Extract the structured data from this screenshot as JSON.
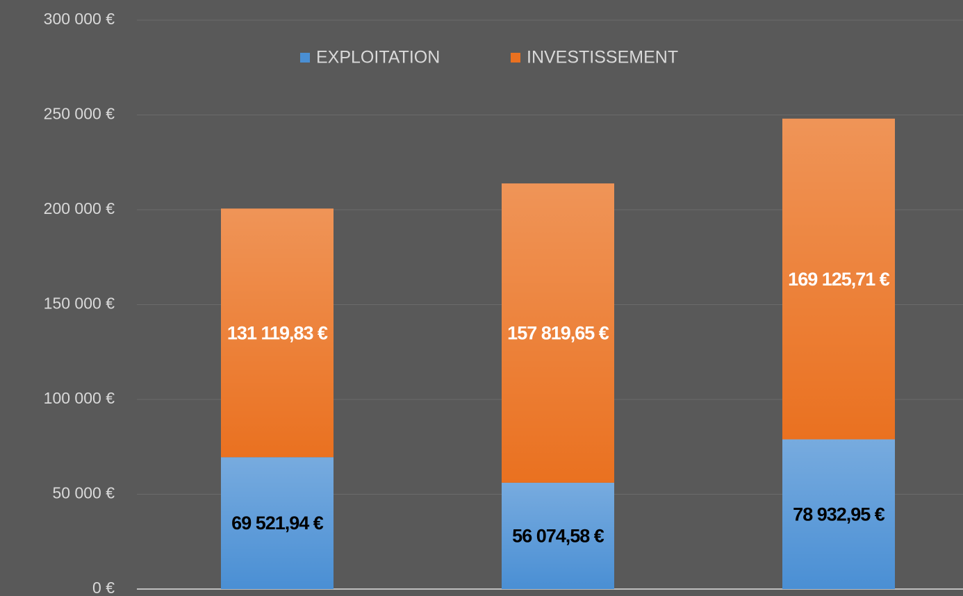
{
  "chart_data": {
    "type": "bar",
    "stacked": true,
    "categories": [
      null,
      null,
      null
    ],
    "series": [
      {
        "name": "EXPLOITATION",
        "color": "#4a8fd4",
        "label_color": "#000000",
        "values": [
          69521.94,
          56074.58,
          78932.95
        ],
        "value_labels": [
          "69 521,94 €",
          "56 074,58 €",
          "78 932,95 €"
        ]
      },
      {
        "name": "INVESTISSEMENT",
        "color": "#ea7120",
        "label_color": "#ffffff",
        "values": [
          131119.83,
          157819.65,
          169125.71
        ],
        "value_labels": [
          "131 119,83 €",
          "157 819,65 €",
          "169 125,71 €"
        ]
      }
    ],
    "ylim": [
      0,
      300000
    ],
    "yticks": [
      {
        "value": 0,
        "label": "0 €"
      },
      {
        "value": 50000,
        "label": "50 000 €"
      },
      {
        "value": 100000,
        "label": "100 000 €"
      },
      {
        "value": 150000,
        "label": "150 000 €"
      },
      {
        "value": 200000,
        "label": "200 000 €"
      },
      {
        "value": 250000,
        "label": "250 000 €"
      },
      {
        "value": 300000,
        "label": "300 000 €"
      }
    ],
    "grid": true,
    "legend": "top"
  }
}
